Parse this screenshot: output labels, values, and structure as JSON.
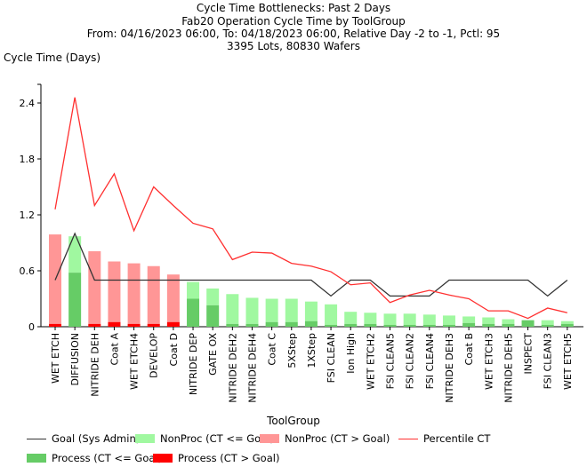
{
  "chart_data": {
    "type": "bar",
    "title": "Cycle Time Bottlenecks: Past 2 Days",
    "subtitle": "Fab20 Operation Cycle Time by ToolGroup",
    "subtitle2": "From: 04/16/2023 06:00, To: 04/18/2023 06:00, Relative Day -2 to -1, Pctl: 95",
    "subtitle3": "3395 Lots, 80830 Wafers",
    "xlabel": "ToolGroup",
    "ylabel": "Cycle Time (Days)",
    "ylim": [
      0,
      2.6
    ],
    "yticks": [
      "0",
      "0.6",
      "1.2",
      "1.8",
      "2.4"
    ],
    "legend_placement": "bottom",
    "categories": [
      "WET ETCH",
      "DIFFUSION",
      "NITRIDE DEH",
      "Coat A",
      "WET ETCH4",
      "DEVELOP",
      "Coat D",
      "NITRIDE DEP",
      "GATE OX",
      "NITRIDE DEH2",
      "NITRIDE DEH4",
      "Coat C",
      "5XStep",
      "1XStep",
      "FSI CLEAN",
      "Ion High",
      "WET ETCH2",
      "FSI CLEAN5",
      "FSI CLEAN2",
      "FSI CLEAN4",
      "NITRIDE DEH3",
      "Coat B",
      "WET ETCH3",
      "NITRIDE DEH5",
      "INSPECT",
      "FSI CLEAN3",
      "WET ETCH5"
    ],
    "total_ct": [
      0.99,
      0.97,
      0.81,
      0.7,
      0.68,
      0.65,
      0.56,
      0.48,
      0.41,
      0.35,
      0.31,
      0.3,
      0.3,
      0.27,
      0.24,
      0.16,
      0.15,
      0.14,
      0.14,
      0.13,
      0.12,
      0.11,
      0.1,
      0.08,
      0.07,
      0.07,
      0.06
    ],
    "process_ct": [
      0.03,
      0.58,
      0.03,
      0.05,
      0.03,
      0.03,
      0.05,
      0.3,
      0.23,
      0.03,
      0.03,
      0.05,
      0.05,
      0.06,
      0.02,
      0.03,
      0.03,
      0.02,
      0.02,
      0.02,
      0.02,
      0.04,
      0.03,
      0.03,
      0.07,
      0.02,
      0.03
    ],
    "goal": [
      0.5,
      1.0,
      0.5,
      0.5,
      0.5,
      0.5,
      0.5,
      0.5,
      0.5,
      0.5,
      0.5,
      0.5,
      0.5,
      0.5,
      0.33,
      0.5,
      0.5,
      0.33,
      0.33,
      0.33,
      0.5,
      0.5,
      0.5,
      0.5,
      0.5,
      0.33,
      0.5
    ],
    "percentile_ct": [
      1.26,
      2.46,
      1.3,
      1.64,
      1.03,
      1.5,
      1.3,
      1.11,
      1.05,
      0.72,
      0.8,
      0.79,
      0.68,
      0.65,
      0.59,
      0.45,
      0.47,
      0.26,
      0.34,
      0.39,
      0.34,
      0.3,
      0.17,
      0.17,
      0.09,
      0.2,
      0.15
    ],
    "legend": {
      "goal": "Goal (Sys Admin)",
      "nonproc_ok": "NonProc (CT <= Goal)",
      "nonproc_bad": "NonProc (CT > Goal)",
      "pctl": "Percentile CT",
      "proc_ok": "Process (CT <= Goal)",
      "proc_bad": "Process (CT > Goal)"
    },
    "colors": {
      "goal": "#333333",
      "nonproc_ok": "#a0f8a0",
      "nonproc_bad": "#ff9696",
      "pctl": "#ff3030",
      "proc_ok": "#66cc66",
      "proc_bad": "#ff0000"
    }
  }
}
